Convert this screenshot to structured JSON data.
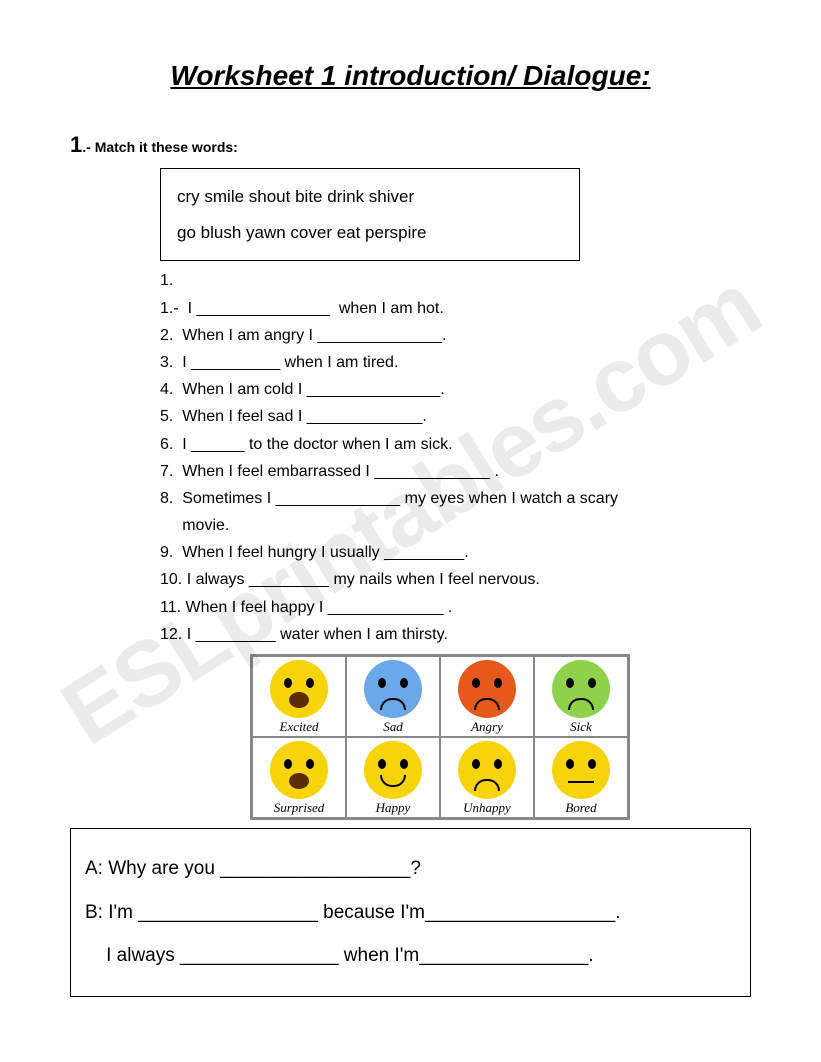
{
  "title": "Worksheet 1  introduction/ Dialogue:",
  "section1": {
    "number": "1",
    "label": ".- Match it these words:"
  },
  "wordbox": {
    "row1": "cry   smile   shout   bite   drink   shiver",
    "row2": "go   blush   yawn   cover   eat  perspire"
  },
  "questions": [
    "1.",
    "1.-  I _______________  when I am hot.",
    "2.  When I am angry I ______________.",
    "3.  I __________ when I am tired.",
    "4.  When I am cold I _______________.",
    "5.  When I feel sad I _____________.",
    "6.  I ______ to the doctor when I am sick.",
    "7.  When I feel embarrassed I _____________ .",
    "8.  Sometimes I ______________ my eyes when I watch a scary",
    "     movie.",
    "9.  When I feel hungry I usually _________.",
    "10. I always _________ my nails when I feel nervous.",
    "11. When I feel happy I _____________ .",
    "12. I _________ water when I am thirsty."
  ],
  "emojis": [
    {
      "label": "Excited",
      "bg": "#f7d40a",
      "mouth": "open"
    },
    {
      "label": "Sad",
      "bg": "#6aa8e8",
      "mouth": "frown"
    },
    {
      "label": "Angry",
      "bg": "#e55a1c",
      "mouth": "frown"
    },
    {
      "label": "Sick",
      "bg": "#8fd14a",
      "mouth": "frown"
    },
    {
      "label": "Surprised",
      "bg": "#f7d40a",
      "mouth": "open"
    },
    {
      "label": "Happy",
      "bg": "#f7d40a",
      "mouth": "smile"
    },
    {
      "label": "Unhappy",
      "bg": "#f7d40a",
      "mouth": "frown"
    },
    {
      "label": "Bored",
      "bg": "#f7d40a",
      "mouth": "flat"
    }
  ],
  "dialogue": {
    "line1": "A: Why are you __________________?",
    "line2": "B: I'm _________________ because I'm__________________.",
    "line3": "    I always _______________ when I'm________________."
  },
  "watermark": "ESLprintables.com"
}
